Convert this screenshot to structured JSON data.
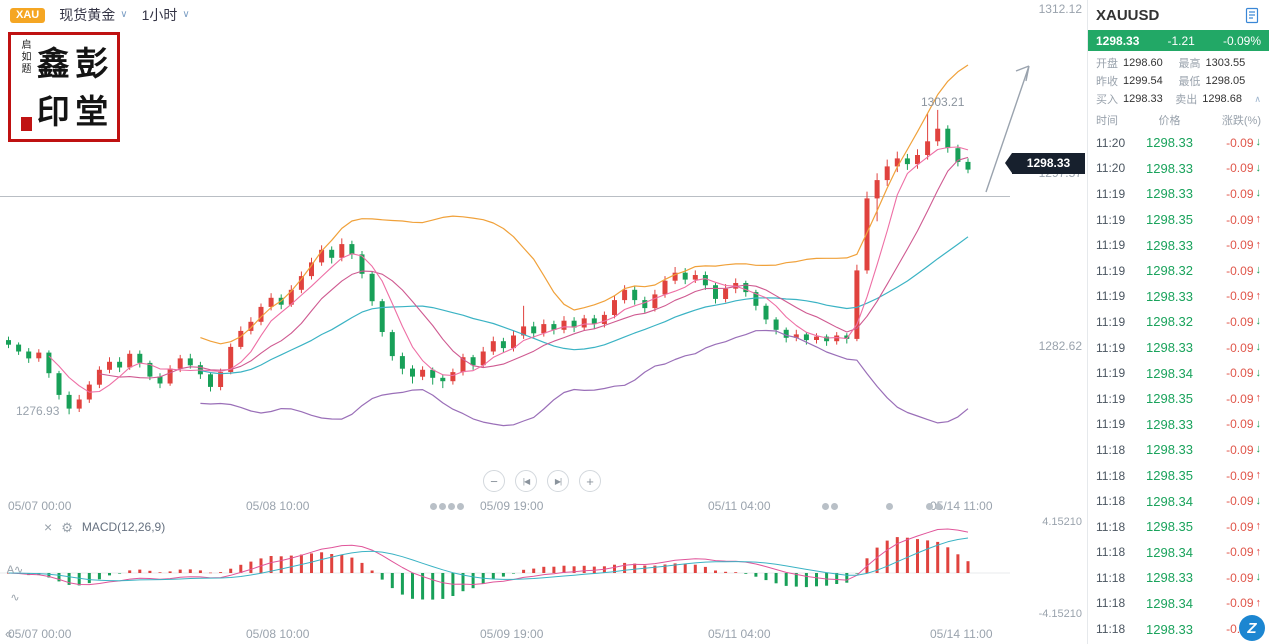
{
  "topbar": {
    "symbol_badge": "XAU",
    "symbol_name": "现货黄金",
    "timeframe": "1小时"
  },
  "seal": {
    "side_text": "启如题",
    "char1": "鑫",
    "char2": "彭",
    "char3": "印",
    "char4": "堂"
  },
  "chart": {
    "price_axis_top": "1312.12",
    "price_axis_mid": "1297.57",
    "price_axis_low": "1282.62",
    "price_label_left_low": "1276.93",
    "high_annotation": "1303.21",
    "current_price_tag": "1298.33",
    "time_labels": [
      "05/07 00:00",
      "05/08 10:00",
      "05/09 19:00",
      "05/11 04:00",
      "05/14 11:00"
    ],
    "controls": {
      "zoom_out": "−",
      "step_back": "|◀",
      "step_fwd": "▶|",
      "zoom_in": "+"
    }
  },
  "macd": {
    "close_icon": "×",
    "gear_icon": "⚙",
    "label": "MACD(12,26,9)",
    "scale_top": "4.15210",
    "scale_bottom": "-4.15210"
  },
  "tools": {
    "annotate_icon": "A∿",
    "wave_icon": "∿",
    "collapse_icon": "«",
    "logo_glyph": "Z"
  },
  "sidebar": {
    "title": "XAUUSD",
    "quote": {
      "last": "1298.33",
      "change": "-1.21",
      "change_pct": "-0.09%"
    },
    "stats": [
      {
        "label": "开盘",
        "value": "1298.60"
      },
      {
        "label": "最高",
        "value": "1303.55"
      },
      {
        "label": "昨收",
        "value": "1299.54"
      },
      {
        "label": "最低",
        "value": "1298.05"
      },
      {
        "label": "买入",
        "value": "1298.33"
      },
      {
        "label": "卖出",
        "value": "1298.68"
      }
    ],
    "table": {
      "headers": [
        "时间",
        "价格",
        "涨跌(%)"
      ],
      "rows": [
        {
          "time": "11:20",
          "price": "1298.33",
          "change": "-0.09",
          "dir": "down"
        },
        {
          "time": "11:20",
          "price": "1298.33",
          "change": "-0.09",
          "dir": "down"
        },
        {
          "time": "11:19",
          "price": "1298.33",
          "change": "-0.09",
          "dir": "down"
        },
        {
          "time": "11:19",
          "price": "1298.35",
          "change": "-0.09",
          "dir": "up"
        },
        {
          "time": "11:19",
          "price": "1298.33",
          "change": "-0.09",
          "dir": "up"
        },
        {
          "time": "11:19",
          "price": "1298.32",
          "change": "-0.09",
          "dir": "down"
        },
        {
          "time": "11:19",
          "price": "1298.33",
          "change": "-0.09",
          "dir": "up"
        },
        {
          "time": "11:19",
          "price": "1298.32",
          "change": "-0.09",
          "dir": "down"
        },
        {
          "time": "11:19",
          "price": "1298.33",
          "change": "-0.09",
          "dir": "down"
        },
        {
          "time": "11:19",
          "price": "1298.34",
          "change": "-0.09",
          "dir": "down"
        },
        {
          "time": "11:19",
          "price": "1298.35",
          "change": "-0.09",
          "dir": "up"
        },
        {
          "time": "11:19",
          "price": "1298.33",
          "change": "-0.09",
          "dir": "down"
        },
        {
          "time": "11:18",
          "price": "1298.33",
          "change": "-0.09",
          "dir": "down"
        },
        {
          "time": "11:18",
          "price": "1298.35",
          "change": "-0.09",
          "dir": "up"
        },
        {
          "time": "11:18",
          "price": "1298.34",
          "change": "-0.09",
          "dir": "down"
        },
        {
          "time": "11:18",
          "price": "1298.35",
          "change": "-0.09",
          "dir": "up"
        },
        {
          "time": "11:18",
          "price": "1298.34",
          "change": "-0.09",
          "dir": "up"
        },
        {
          "time": "11:18",
          "price": "1298.33",
          "change": "-0.09",
          "dir": "down"
        },
        {
          "time": "11:18",
          "price": "1298.34",
          "change": "-0.09",
          "dir": "up"
        },
        {
          "time": "11:18",
          "price": "1298.33",
          "change": "-0.09",
          "dir": "down"
        }
      ]
    }
  },
  "colors": {
    "up": "#e0423e",
    "down": "#18a058",
    "accent_green": "#22a866",
    "price_green": "#1aa35c",
    "change_red": "#e0564a",
    "badge_orange": "#f5a623",
    "ma5": "#ee6fa5",
    "ma10": "#cf5a91",
    "boll_upper": "#f0a13a",
    "boll_mid": "#3bb3c4",
    "boll_lower": "#9a6fb8",
    "macd_dif": "#e0559a",
    "macd_dea": "#3bb3c4"
  },
  "chart_data": {
    "type": "candlestick",
    "symbol": "XAUUSD",
    "interval": "1小时",
    "title": "现货黄金 1小时 K线",
    "ylim": [
      1269.4,
      1313.17
    ],
    "x_ticks": [
      "05/07 00:00",
      "05/08 10:00",
      "05/09 19:00",
      "05/11 04:00",
      "05/14 11:00"
    ],
    "key_levels": {
      "current": 1298.33,
      "day_high": 1303.55,
      "day_low": 1298.05,
      "prev_close": 1299.54,
      "open": 1298.6,
      "swing_high": 1303.21,
      "swing_low": 1276.93
    },
    "overlays": [
      "MA5",
      "MA10",
      "BOLL-upper",
      "BOLL-mid(MA20)",
      "BOLL-lower"
    ],
    "indicator": {
      "type": "MACD",
      "params": [
        12,
        26,
        9
      ],
      "range": [
        -4.1521,
        4.1521
      ]
    },
    "candles_ohlc": [
      [
        1283.4,
        1283.7,
        1282.7,
        1283.0
      ],
      [
        1283.0,
        1283.2,
        1282.1,
        1282.4
      ],
      [
        1282.4,
        1282.7,
        1281.4,
        1281.8
      ],
      [
        1281.8,
        1282.6,
        1281.5,
        1282.3
      ],
      [
        1282.3,
        1282.5,
        1280.1,
        1280.5
      ],
      [
        1280.5,
        1280.7,
        1278.2,
        1278.6
      ],
      [
        1278.6,
        1278.9,
        1276.9,
        1277.4
      ],
      [
        1277.4,
        1278.6,
        1277.1,
        1278.2
      ],
      [
        1278.2,
        1279.8,
        1277.9,
        1279.5
      ],
      [
        1279.5,
        1281.1,
        1279.2,
        1280.8
      ],
      [
        1280.8,
        1281.9,
        1280.5,
        1281.5
      ],
      [
        1281.5,
        1281.9,
        1280.6,
        1281.0
      ],
      [
        1281.0,
        1282.5,
        1280.8,
        1282.2
      ],
      [
        1282.2,
        1282.5,
        1281.0,
        1281.4
      ],
      [
        1281.4,
        1281.6,
        1279.9,
        1280.2
      ],
      [
        1280.2,
        1280.5,
        1279.2,
        1279.6
      ],
      [
        1279.6,
        1281.2,
        1279.4,
        1280.9
      ],
      [
        1280.9,
        1282.1,
        1280.6,
        1281.8
      ],
      [
        1281.8,
        1282.2,
        1280.9,
        1281.2
      ],
      [
        1281.2,
        1281.5,
        1280.0,
        1280.4
      ],
      [
        1280.4,
        1280.6,
        1278.9,
        1279.3
      ],
      [
        1279.3,
        1280.9,
        1279.0,
        1280.6
      ],
      [
        1280.6,
        1283.1,
        1280.4,
        1282.8
      ],
      [
        1282.8,
        1284.6,
        1282.6,
        1284.2
      ],
      [
        1284.2,
        1285.4,
        1283.9,
        1285.0
      ],
      [
        1285.0,
        1286.6,
        1284.7,
        1286.3
      ],
      [
        1286.3,
        1287.5,
        1286.0,
        1287.1
      ],
      [
        1287.1,
        1287.4,
        1286.1,
        1286.5
      ],
      [
        1286.5,
        1288.2,
        1286.3,
        1287.8
      ],
      [
        1287.8,
        1289.4,
        1287.5,
        1289.0
      ],
      [
        1289.0,
        1290.6,
        1288.7,
        1290.2
      ],
      [
        1290.2,
        1291.7,
        1289.9,
        1291.3
      ],
      [
        1291.3,
        1291.6,
        1290.1,
        1290.6
      ],
      [
        1290.6,
        1292.3,
        1290.3,
        1291.8
      ],
      [
        1291.8,
        1292.1,
        1290.5,
        1290.9
      ],
      [
        1290.9,
        1291.2,
        1288.8,
        1289.2
      ],
      [
        1289.2,
        1289.4,
        1286.4,
        1286.8
      ],
      [
        1286.8,
        1287.0,
        1283.7,
        1284.1
      ],
      [
        1284.1,
        1284.3,
        1281.6,
        1282.0
      ],
      [
        1282.0,
        1282.3,
        1280.4,
        1280.9
      ],
      [
        1280.9,
        1281.2,
        1279.6,
        1280.2
      ],
      [
        1280.2,
        1281.1,
        1279.9,
        1280.8
      ],
      [
        1280.8,
        1281.0,
        1279.5,
        1280.1
      ],
      [
        1280.1,
        1280.4,
        1279.2,
        1279.8
      ],
      [
        1279.8,
        1280.9,
        1279.5,
        1280.6
      ],
      [
        1280.6,
        1282.2,
        1280.3,
        1281.9
      ],
      [
        1281.9,
        1282.1,
        1280.8,
        1281.2
      ],
      [
        1281.2,
        1282.8,
        1281.0,
        1282.4
      ],
      [
        1282.4,
        1283.7,
        1282.1,
        1283.3
      ],
      [
        1283.3,
        1283.6,
        1282.3,
        1282.7
      ],
      [
        1282.7,
        1284.2,
        1282.4,
        1283.8
      ],
      [
        1283.8,
        1286.4,
        1283.5,
        1284.6
      ],
      [
        1284.6,
        1285.0,
        1283.6,
        1284.0
      ],
      [
        1284.0,
        1285.2,
        1283.7,
        1284.8
      ],
      [
        1284.8,
        1285.1,
        1283.9,
        1284.3
      ],
      [
        1284.3,
        1285.5,
        1284.0,
        1285.1
      ],
      [
        1285.1,
        1285.4,
        1284.1,
        1284.5
      ],
      [
        1284.5,
        1285.6,
        1284.2,
        1285.3
      ],
      [
        1285.3,
        1285.6,
        1284.4,
        1284.8
      ],
      [
        1284.8,
        1285.9,
        1284.5,
        1285.6
      ],
      [
        1285.6,
        1287.3,
        1285.3,
        1286.9
      ],
      [
        1286.9,
        1288.2,
        1286.6,
        1287.8
      ],
      [
        1287.8,
        1288.1,
        1286.5,
        1286.9
      ],
      [
        1286.9,
        1287.2,
        1285.8,
        1286.2
      ],
      [
        1286.2,
        1287.8,
        1285.9,
        1287.4
      ],
      [
        1287.4,
        1289.0,
        1287.1,
        1288.6
      ],
      [
        1288.6,
        1289.8,
        1288.3,
        1289.3
      ],
      [
        1289.3,
        1289.7,
        1288.3,
        1288.7
      ],
      [
        1288.7,
        1289.5,
        1288.4,
        1289.1
      ],
      [
        1289.1,
        1289.4,
        1287.8,
        1288.2
      ],
      [
        1288.2,
        1288.4,
        1286.6,
        1287.0
      ],
      [
        1287.0,
        1288.3,
        1286.7,
        1287.9
      ],
      [
        1287.9,
        1288.8,
        1287.5,
        1288.4
      ],
      [
        1288.4,
        1288.6,
        1287.2,
        1287.6
      ],
      [
        1287.6,
        1287.8,
        1286.0,
        1286.4
      ],
      [
        1286.4,
        1286.6,
        1284.8,
        1285.2
      ],
      [
        1285.2,
        1285.4,
        1283.9,
        1284.3
      ],
      [
        1284.3,
        1284.5,
        1283.2,
        1283.6
      ],
      [
        1283.6,
        1284.3,
        1283.3,
        1283.9
      ],
      [
        1283.9,
        1284.1,
        1283.0,
        1283.4
      ],
      [
        1283.4,
        1284.0,
        1283.1,
        1283.7
      ],
      [
        1283.7,
        1283.9,
        1282.9,
        1283.3
      ],
      [
        1283.3,
        1284.1,
        1283.0,
        1283.8
      ],
      [
        1283.8,
        1284.0,
        1283.1,
        1283.5
      ],
      [
        1283.5,
        1290.0,
        1283.3,
        1289.5
      ],
      [
        1289.5,
        1296.4,
        1289.2,
        1295.8
      ],
      [
        1295.8,
        1298.0,
        1293.8,
        1297.4
      ],
      [
        1297.4,
        1299.2,
        1296.9,
        1298.6
      ],
      [
        1298.6,
        1299.9,
        1298.1,
        1299.3
      ],
      [
        1299.3,
        1299.7,
        1298.3,
        1298.8
      ],
      [
        1298.8,
        1300.1,
        1298.4,
        1299.6
      ],
      [
        1299.6,
        1303.2,
        1299.2,
        1300.8
      ],
      [
        1300.8,
        1303.55,
        1300.4,
        1301.9
      ],
      [
        1301.9,
        1302.2,
        1299.8,
        1300.2
      ],
      [
        1300.2,
        1300.5,
        1298.6,
        1299.0
      ],
      [
        1299.0,
        1299.3,
        1298.0,
        1298.33
      ]
    ]
  }
}
